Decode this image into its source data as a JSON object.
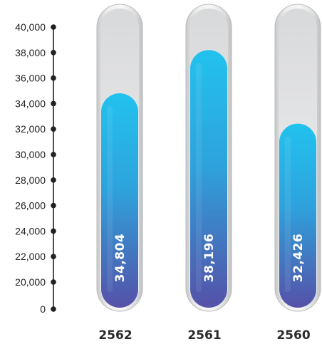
{
  "chart_data": {
    "type": "bar",
    "categories": [
      "2562",
      "2561",
      "2560"
    ],
    "values": [
      34804,
      38196,
      32426
    ],
    "value_labels": [
      "34,804",
      "38,196",
      "32,426"
    ],
    "y_ticks": [
      {
        "value": 0,
        "label": "0"
      },
      {
        "value": 20000,
        "label": "20,000"
      },
      {
        "value": 22000,
        "label": "22,000"
      },
      {
        "value": 24000,
        "label": "24,000"
      },
      {
        "value": 26000,
        "label": "26,000"
      },
      {
        "value": 28000,
        "label": "28,000"
      },
      {
        "value": 30000,
        "label": "30,000"
      },
      {
        "value": 32000,
        "label": "32,000"
      },
      {
        "value": 34000,
        "label": "34,000"
      },
      {
        "value": 36000,
        "label": "36,000"
      },
      {
        "value": 38000,
        "label": "38,000"
      },
      {
        "value": 40000,
        "label": "40,000"
      }
    ],
    "ylim": [
      0,
      40000
    ],
    "axis_break": "between 0 and 20,000",
    "grid": false,
    "colors": {
      "fill_top": "#22c2ee",
      "fill_bottom": "#5551a8",
      "tube_outer": "#d4d5d6",
      "tube_inner": "#f2f2f3",
      "axis": "#222222"
    }
  }
}
